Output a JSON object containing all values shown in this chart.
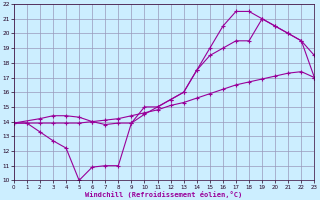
{
  "xlabel": "Windchill (Refroidissement éolien,°C)",
  "bg_color": "#cceeff",
  "grid_color": "#9999bb",
  "line_color": "#990099",
  "xlim": [
    0,
    23
  ],
  "ylim": [
    10,
    22
  ],
  "xticks": [
    0,
    1,
    2,
    3,
    4,
    5,
    6,
    7,
    8,
    9,
    10,
    11,
    12,
    13,
    14,
    15,
    16,
    17,
    18,
    19,
    20,
    21,
    22,
    23
  ],
  "yticks": [
    10,
    11,
    12,
    13,
    14,
    15,
    16,
    17,
    18,
    19,
    20,
    21,
    22
  ],
  "line1_x": [
    0,
    1,
    2,
    3,
    4,
    5,
    6,
    7,
    8,
    9,
    10,
    11,
    12,
    13,
    14,
    15,
    16,
    17,
    18,
    19,
    20,
    21,
    22,
    23
  ],
  "line1_y": [
    13.9,
    13.9,
    13.9,
    13.9,
    13.9,
    13.9,
    14.0,
    14.1,
    14.2,
    14.4,
    14.6,
    14.8,
    15.1,
    15.3,
    15.6,
    15.9,
    16.2,
    16.5,
    16.7,
    16.9,
    17.1,
    17.3,
    17.4,
    17.0
  ],
  "line2_x": [
    0,
    1,
    2,
    3,
    4,
    5,
    6,
    7,
    8,
    9,
    10,
    11,
    12,
    13,
    14,
    15,
    16,
    17,
    18,
    19,
    20,
    21,
    22,
    23
  ],
  "line2_y": [
    13.9,
    13.9,
    13.3,
    12.7,
    12.2,
    10.0,
    10.9,
    11.0,
    11.0,
    13.9,
    14.5,
    15.0,
    15.5,
    16.0,
    17.5,
    19.0,
    20.5,
    21.5,
    21.5,
    21.0,
    20.5,
    20.0,
    19.5,
    17.0
  ],
  "line3_x": [
    0,
    2,
    3,
    4,
    5,
    6,
    7,
    8,
    9,
    10,
    11,
    12,
    13,
    14,
    15,
    16,
    17,
    18,
    19,
    20,
    21,
    22,
    23
  ],
  "line3_y": [
    13.9,
    14.2,
    14.4,
    14.4,
    14.3,
    14.0,
    13.8,
    13.9,
    13.9,
    15.0,
    15.0,
    15.5,
    16.0,
    17.5,
    18.5,
    19.0,
    19.5,
    19.5,
    21.0,
    20.5,
    20.0,
    19.5,
    18.5
  ]
}
